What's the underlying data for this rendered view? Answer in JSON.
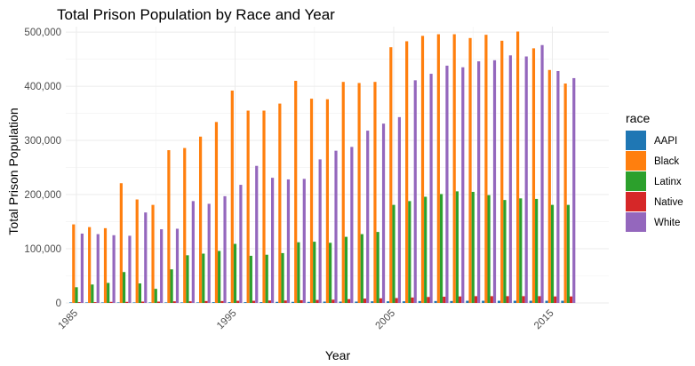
{
  "chart_data": {
    "type": "bar",
    "title": "Total Prison Population by Race and Year",
    "xlabel": "Year",
    "ylabel": "Total Prison Population",
    "x_ticks": [
      "1985",
      "1995",
      "2005",
      "2015"
    ],
    "y_ticks": [
      "0",
      "100,000",
      "200,000",
      "300,000",
      "400,000",
      "500,000"
    ],
    "ylim": [
      0,
      510000
    ],
    "grid": true,
    "legend": {
      "title": "race",
      "position": "right"
    },
    "x": [
      1985,
      1986,
      1987,
      1988,
      1989,
      1990,
      1991,
      1992,
      1993,
      1994,
      1995,
      1996,
      1997,
      1998,
      1999,
      2000,
      2001,
      2002,
      2003,
      2004,
      2005,
      2006,
      2007,
      2008,
      2009,
      2010,
      2011,
      2012,
      2013,
      2014,
      2015,
      2016
    ],
    "series": [
      {
        "name": "AAPI",
        "color": "#1f77b4",
        "values": [
          1000,
          1000,
          1000,
          1000,
          1000,
          1000,
          1000,
          1000,
          1000,
          1500,
          1500,
          1500,
          1500,
          2000,
          2000,
          2000,
          2500,
          2500,
          2500,
          3000,
          3000,
          3000,
          3500,
          3500,
          3500,
          4000,
          4000,
          4000,
          4000,
          4000,
          4000,
          4000
        ]
      },
      {
        "name": "Black",
        "color": "#ff7f0e",
        "values": [
          145000,
          140000,
          138000,
          221000,
          191000,
          181000,
          282000,
          286000,
          307000,
          334000,
          392000,
          355000,
          355000,
          368000,
          410000,
          377000,
          376000,
          408000,
          406000,
          408000,
          472000,
          483000,
          493000,
          496000,
          496000,
          489000,
          495000,
          484000,
          501000,
          470000,
          430000,
          405000
        ]
      },
      {
        "name": "Latinx",
        "color": "#2ca02c",
        "values": [
          29000,
          34000,
          37000,
          57000,
          36000,
          26000,
          62000,
          88000,
          91000,
          96000,
          109000,
          87000,
          89000,
          92000,
          112000,
          113000,
          111000,
          122000,
          127000,
          131000,
          181000,
          188000,
          196000,
          201000,
          206000,
          205000,
          199000,
          190000,
          193000,
          192000,
          181000,
          181000
        ]
      },
      {
        "name": "Native",
        "color": "#d62728",
        "values": [
          1500,
          1500,
          2000,
          2000,
          2500,
          2500,
          3000,
          3000,
          3500,
          3500,
          4000,
          4000,
          4500,
          4500,
          5000,
          5500,
          6000,
          7000,
          8000,
          8500,
          9000,
          10000,
          11000,
          11500,
          12000,
          12500,
          12500,
          12500,
          12500,
          12500,
          12000,
          12000
        ]
      },
      {
        "name": "White",
        "color": "#9467bd",
        "values": [
          128000,
          127000,
          125000,
          124000,
          167000,
          136000,
          137000,
          188000,
          183000,
          197000,
          218000,
          253000,
          231000,
          228000,
          229000,
          265000,
          281000,
          288000,
          318000,
          331000,
          343000,
          411000,
          423000,
          438000,
          435000,
          446000,
          448000,
          457000,
          455000,
          476000,
          428000,
          415000
        ]
      }
    ]
  }
}
